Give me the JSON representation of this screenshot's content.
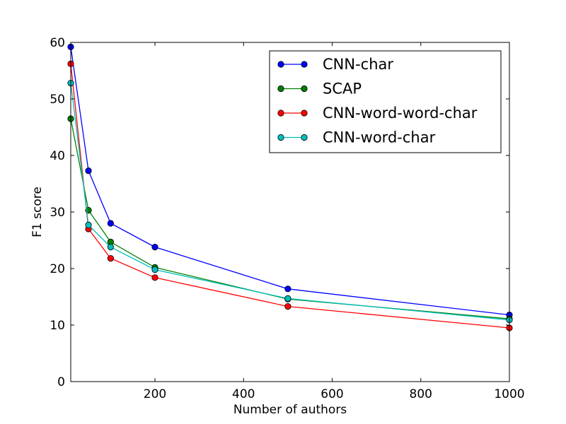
{
  "chart_data": {
    "type": "line",
    "title": "",
    "xlabel": "Number of authors",
    "ylabel": "F1 score",
    "xlim": [
      10,
      1000
    ],
    "ylim": [
      0,
      60
    ],
    "xticks": [
      200,
      400,
      600,
      800,
      1000
    ],
    "yticks": [
      0,
      10,
      20,
      30,
      40,
      50,
      60
    ],
    "grid": false,
    "legend_position": "upper right",
    "x": [
      10,
      50,
      100,
      200,
      500,
      1000
    ],
    "series": [
      {
        "name": "CNN-char",
        "color": "#0000ff",
        "values": [
          59.2,
          37.3,
          28.0,
          23.8,
          16.4,
          11.8
        ]
      },
      {
        "name": "SCAP",
        "color": "#008000",
        "values": [
          46.5,
          30.3,
          24.7,
          20.2,
          14.6,
          11.1
        ]
      },
      {
        "name": "CNN-word-word-char",
        "color": "#ff0000",
        "values": [
          56.2,
          27.0,
          21.8,
          18.4,
          13.3,
          9.5
        ]
      },
      {
        "name": "CNN-word-char",
        "color": "#00bfbf",
        "values": [
          52.8,
          27.7,
          23.8,
          19.8,
          14.7,
          10.9
        ]
      }
    ]
  }
}
